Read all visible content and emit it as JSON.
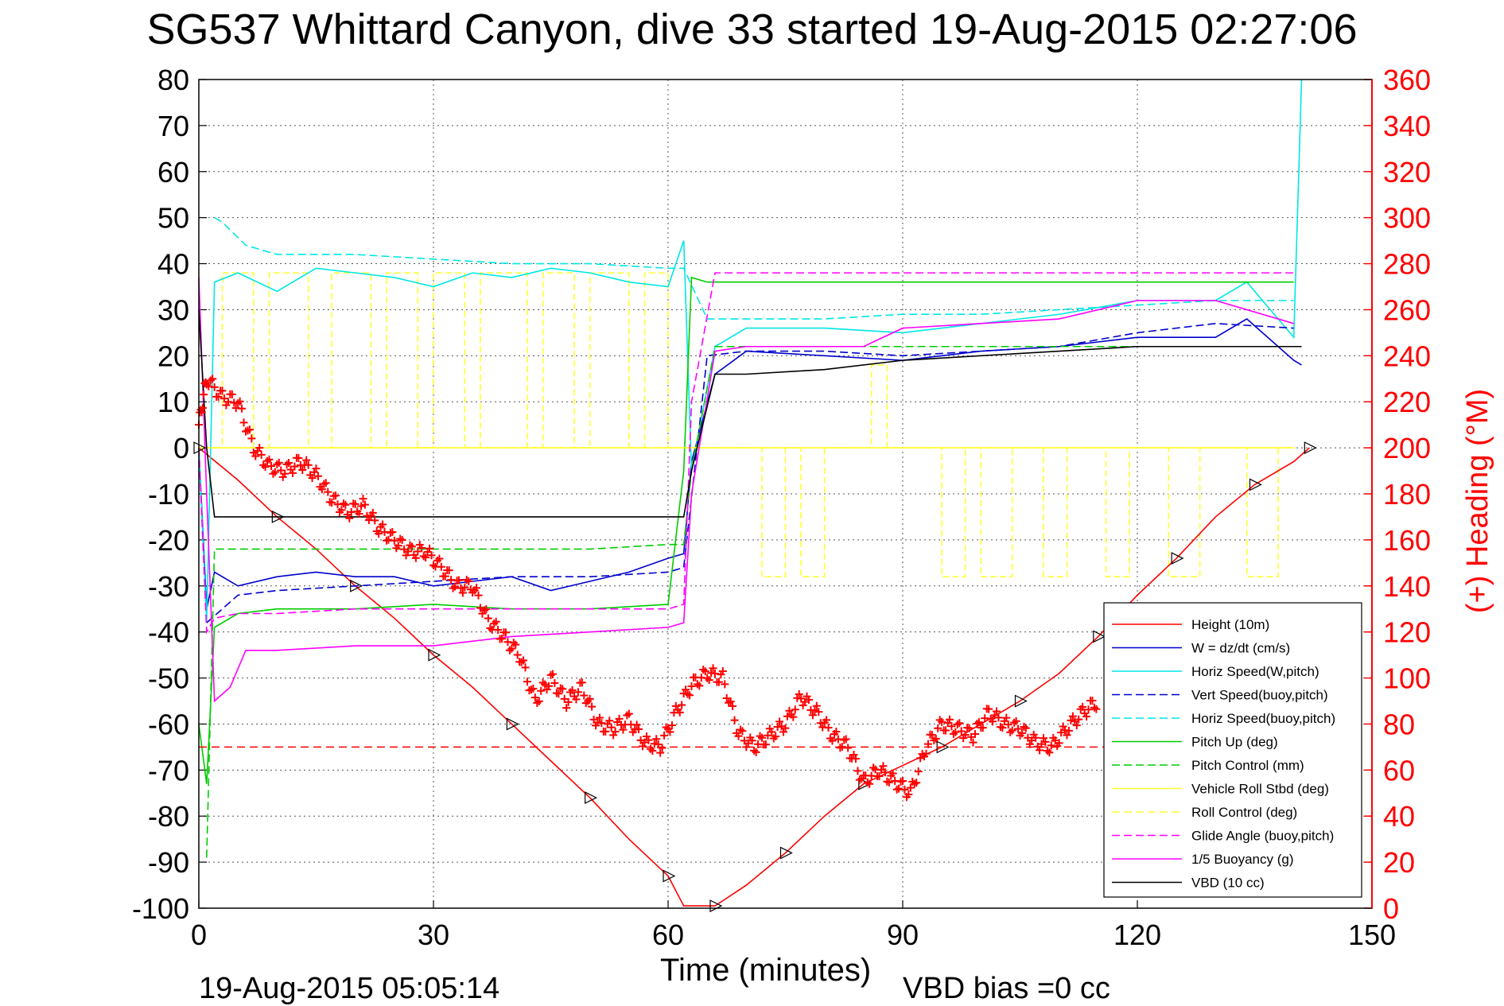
{
  "chart_data": {
    "type": "line",
    "title": "SG537 Whittard Canyon, dive 33 started 19-Aug-2015 02:27:06",
    "xlabel": "Time (minutes)",
    "ylabel": "",
    "y2label": "(+) Heading (°M)",
    "footer_date": "19-Aug-2015 05:05:14",
    "footer_bias": "VBD bias =0 cc",
    "xlim": [
      0,
      150
    ],
    "ylim": [
      -100,
      80
    ],
    "y2lim": [
      0,
      360
    ],
    "grid": true,
    "legend_position": "bottom-right",
    "x_ticks": [
      "0",
      "30",
      "60",
      "90",
      "120",
      "150"
    ],
    "y_ticks": [
      "80",
      "70",
      "60",
      "50",
      "40",
      "30",
      "20",
      "10",
      "0",
      "-10",
      "-20",
      "-30",
      "-40",
      "-50",
      "-60",
      "-70",
      "-80",
      "-90",
      "-100"
    ],
    "y2_ticks": [
      "360",
      "340",
      "320",
      "300",
      "280",
      "260",
      "240",
      "220",
      "200",
      "180",
      "160",
      "140",
      "120",
      "100",
      "80",
      "60",
      "40",
      "20",
      "0"
    ],
    "colors": {
      "height": "#ff0000",
      "w": "#0000cc",
      "horiz_w": "#00e6e6",
      "pitch_up": "#00cc00",
      "vehicle_roll": "#ffff33",
      "glide": "#ff00ff",
      "buoyancy": "#ff00ff",
      "vbd": "#000000",
      "heading": "#ff0000",
      "grid": "#555555"
    },
    "series": [
      {
        "name": "Height (10m)",
        "style": "solid",
        "color": "#ff0000",
        "x": [
          0,
          5,
          10,
          15,
          20,
          25,
          30,
          35,
          40,
          45,
          50,
          55,
          60,
          62,
          66,
          70,
          75,
          80,
          85,
          90,
          95,
          100,
          105,
          110,
          115,
          120,
          125,
          130,
          135,
          140,
          142
        ],
        "y": [
          0,
          -7,
          -15,
          -22,
          -30,
          -37,
          -45,
          -52,
          -60,
          -68,
          -76,
          -85,
          -93,
          -99.5,
          -99.5,
          -95,
          -88,
          -80,
          -73,
          -69,
          -65,
          -60,
          -55,
          -49,
          -41,
          -32,
          -24,
          -15,
          -8,
          -3,
          0
        ]
      },
      {
        "name": "W = dz/dt (cm/s)",
        "style": "solid",
        "color": "#0000cc",
        "x": [
          0,
          1,
          2,
          5,
          10,
          15,
          20,
          25,
          30,
          35,
          40,
          45,
          50,
          55,
          60,
          62,
          63,
          66,
          70,
          80,
          90,
          100,
          110,
          120,
          130,
          134,
          140,
          141
        ],
        "y": [
          0,
          -35,
          -27,
          -30,
          -28,
          -27,
          -28,
          -28,
          -30,
          -29,
          -28,
          -31,
          -29,
          -27,
          -24,
          -23,
          -3,
          16,
          21,
          20,
          19,
          21,
          22,
          24,
          24,
          28,
          19,
          18
        ]
      },
      {
        "name": "Horiz Speed(W,pitch)",
        "style": "solid",
        "color": "#00e6e6",
        "x": [
          0,
          1,
          2,
          5,
          10,
          15,
          20,
          25,
          30,
          35,
          40,
          45,
          50,
          55,
          60,
          62,
          63,
          66,
          70,
          80,
          90,
          100,
          110,
          120,
          130,
          134,
          140,
          141
        ],
        "y": [
          0,
          -38,
          36,
          38,
          34,
          39,
          38,
          37,
          35,
          38,
          37,
          39,
          38,
          36,
          35,
          45,
          -5,
          22,
          26,
          26,
          25,
          27,
          29,
          32,
          32,
          36,
          24,
          80
        ]
      },
      {
        "name": "Vert Speed(buoy,pitch)",
        "style": "dashed",
        "color": "#0000cc",
        "x": [
          1,
          5,
          10,
          20,
          30,
          40,
          50,
          60,
          62,
          65,
          70,
          80,
          90,
          100,
          110,
          120,
          130,
          140
        ],
        "y": [
          -38,
          -32,
          -31,
          -30,
          -29,
          -28,
          -28,
          -27,
          -26,
          20,
          21,
          21,
          20,
          21,
          22,
          25,
          27,
          26
        ]
      },
      {
        "name": "Horiz Speed(buoy,pitch)",
        "style": "dashed",
        "color": "#00e6e6",
        "x": [
          2,
          3,
          6,
          10,
          20,
          30,
          40,
          50,
          60,
          62,
          65,
          70,
          80,
          90,
          100,
          110,
          120,
          130,
          140
        ],
        "y": [
          50,
          49,
          44,
          42,
          42,
          41,
          40,
          40,
          39,
          39,
          28,
          28,
          28,
          29,
          29,
          30,
          31,
          32,
          32
        ]
      },
      {
        "name": "Pitch Up (deg)",
        "style": "solid",
        "color": "#00cc00",
        "x": [
          0,
          1,
          2,
          5,
          10,
          20,
          30,
          40,
          50,
          60,
          62,
          63,
          65,
          70,
          80,
          90,
          100,
          110,
          120,
          130,
          140
        ],
        "y": [
          -60,
          -73,
          -39,
          -36,
          -35,
          -35,
          -34,
          -35,
          -35,
          -34,
          -5,
          37,
          36,
          36,
          36,
          36,
          36,
          36,
          36,
          36,
          36
        ]
      },
      {
        "name": "Pitch Control (mm)",
        "style": "dashed",
        "color": "#00cc00",
        "x": [
          1,
          2,
          5,
          10,
          20,
          30,
          40,
          50,
          60,
          62,
          63,
          66,
          70,
          80,
          90,
          100,
          110,
          120,
          130,
          140
        ],
        "y": [
          -89,
          -22,
          -22,
          -22,
          -22,
          -22,
          -22,
          -22,
          -21,
          -21,
          -5,
          22,
          22,
          22,
          22,
          22,
          22,
          22,
          22,
          22
        ]
      },
      {
        "name": "Vehicle Roll Stbd (deg)",
        "style": "solid",
        "color": "#ffff33",
        "x": [
          0,
          140
        ],
        "y": [
          0,
          0
        ]
      },
      {
        "name": "Roll Control (deg)",
        "style": "dashed",
        "color": "#ffff33",
        "x": [
          0,
          140
        ],
        "y": [
          0,
          0
        ]
      },
      {
        "name": "Glide Angle (buoy,pitch)",
        "style": "dashed",
        "color": "#ff00ff",
        "x": [
          0,
          1,
          2,
          5,
          10,
          20,
          30,
          40,
          50,
          60,
          62,
          63,
          66,
          70,
          80,
          90,
          100,
          110,
          120,
          130,
          140
        ],
        "y": [
          0,
          -40,
          -37,
          -36,
          -36,
          -35,
          -35,
          -35,
          -35,
          -35,
          -34,
          10,
          38,
          38,
          38,
          38,
          38,
          38,
          38,
          38,
          38
        ]
      },
      {
        "name": "1/5 Buoyancy (g)",
        "style": "solid",
        "color": "#ff00ff",
        "x": [
          0,
          1,
          2,
          4,
          6,
          10,
          20,
          30,
          40,
          50,
          60,
          62,
          63,
          66,
          70,
          80,
          85,
          90,
          100,
          110,
          120,
          130,
          140
        ],
        "y": [
          37,
          -10,
          -55,
          -52,
          -44,
          -44,
          -43,
          -43,
          -41,
          -40,
          -39,
          -38,
          -10,
          21,
          22,
          22,
          22,
          26,
          27,
          28,
          32,
          32,
          27
        ]
      },
      {
        "name": "VBD (10 cc)",
        "style": "solid",
        "color": "#000000",
        "x": [
          0,
          1,
          2,
          3,
          10,
          20,
          30,
          40,
          50,
          60,
          62,
          63,
          66,
          70,
          80,
          90,
          100,
          110,
          120,
          130,
          140,
          141
        ],
        "y": [
          30,
          0,
          -15,
          -15,
          -15,
          -15,
          -15,
          -15,
          -15,
          -15,
          -15,
          -5,
          16,
          16,
          17,
          19,
          20,
          21,
          22,
          22,
          22,
          22
        ]
      }
    ],
    "heading_series": {
      "name": "(+) Heading (°M)",
      "color": "#ff0000",
      "x": [
        0,
        1,
        3,
        5,
        7,
        9,
        11,
        13,
        15,
        17,
        19,
        21,
        23,
        25,
        27,
        29,
        31,
        33,
        35,
        37,
        39,
        41,
        43,
        45,
        47,
        49,
        51,
        53,
        55,
        57,
        59,
        61,
        63,
        65,
        67,
        69,
        71,
        73,
        75,
        77,
        79,
        81,
        83,
        85,
        87,
        89,
        91,
        93,
        95,
        97,
        99,
        101,
        103,
        105,
        107,
        109,
        111,
        113,
        115
      ],
      "y": [
        210,
        230,
        222,
        220,
        200,
        192,
        190,
        194,
        188,
        178,
        172,
        175,
        165,
        160,
        155,
        155,
        148,
        140,
        140,
        125,
        118,
        110,
        90,
        100,
        90,
        96,
        80,
        78,
        82,
        72,
        70,
        85,
        97,
        102,
        100,
        76,
        70,
        75,
        80,
        92,
        85,
        75,
        70,
        55,
        60,
        55,
        50,
        70,
        80,
        78,
        75,
        85,
        80,
        78,
        72,
        70,
        78,
        85,
        90
      ]
    },
    "reference_line": {
      "style": "dashed",
      "color": "#ff0000",
      "y": -65,
      "x": [
        0,
        140
      ]
    }
  },
  "legend": [
    "Height (10m)",
    "W = dz/dt (cm/s)",
    "Horiz Speed(W,pitch)",
    "Vert Speed(buoy,pitch)",
    "Horiz Speed(buoy,pitch)",
    "Pitch Up (deg)",
    "Pitch Control (mm)",
    "Vehicle Roll Stbd (deg)",
    "Roll Control (deg)",
    "Glide Angle (buoy,pitch)",
    "1/5 Buoyancy (g)",
    "VBD (10 cc)"
  ]
}
